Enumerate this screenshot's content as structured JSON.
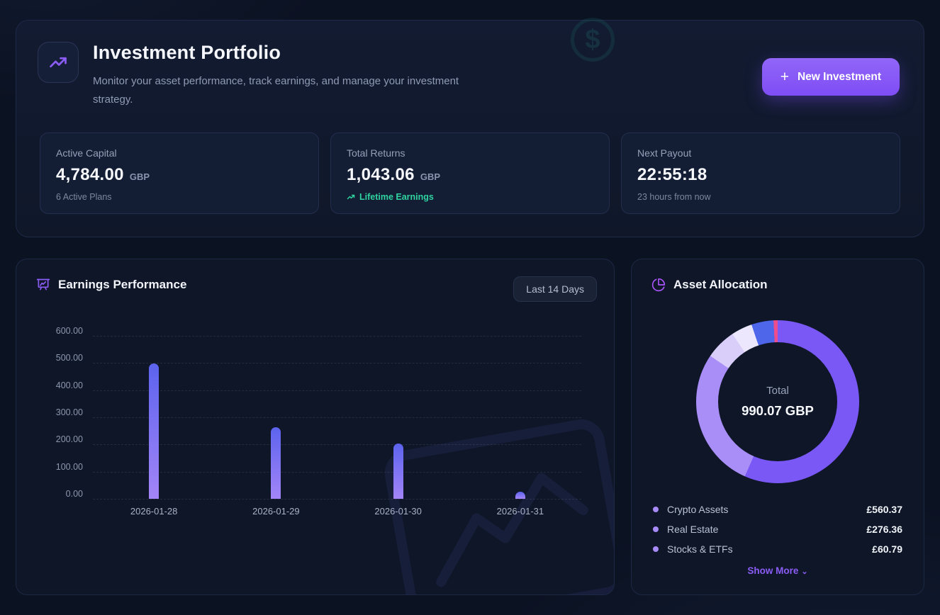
{
  "app": {
    "accent": "#8b5cf6",
    "positive": "#2fd3a0",
    "background": "#0b1222"
  },
  "hero": {
    "icon": "trending-up-icon",
    "title": "Investment Portfolio",
    "subtitle": "Monitor your asset performance, track earnings, and manage your investment strategy.",
    "button": {
      "icon": "+",
      "label": "New Investment"
    }
  },
  "stats": [
    {
      "label": "Active Capital",
      "value": "4,784.00",
      "currency": "GBP",
      "sub": "6 Active Plans"
    },
    {
      "label": "Total Returns",
      "value": "1,043.06",
      "currency": "GBP",
      "sub": "Lifetime Earnings",
      "watermark": "$"
    },
    {
      "label": "Next Payout",
      "value": "22:55:18",
      "currency": "",
      "sub": "23 hours from now"
    }
  ],
  "earnings": {
    "title": "Earnings Performance",
    "range": "Last 14 Days"
  },
  "allocation": {
    "title": "Asset Allocation",
    "center_label": "Total",
    "center_value": "990.07 GBP",
    "legend": [
      {
        "label": "Crypto Assets",
        "value": "£560.37"
      },
      {
        "label": "Real Estate",
        "value": "£276.36"
      },
      {
        "label": "Stocks & ETFs",
        "value": "£60.79"
      }
    ],
    "show_more": "Show More",
    "show_more_chevron": "⌄"
  },
  "chart_data": [
    {
      "type": "bar",
      "title": "Earnings Performance",
      "range_label": "Last 14 Days",
      "categories": [
        "2026-01-28",
        "2026-01-29",
        "2026-01-30",
        "2026-01-31"
      ],
      "values": [
        497,
        264,
        203,
        12
      ],
      "ylim": [
        0,
        600
      ],
      "yticks": [
        "600.00",
        "500.00",
        "400.00",
        "300.00",
        "200.00",
        "100.00",
        "0.00"
      ],
      "grid": "horizontal-dashed",
      "bar_gradient": [
        "#5c63ee",
        "#a385f7"
      ]
    },
    {
      "type": "pie",
      "subtype": "donut",
      "title": "Asset Allocation",
      "center_label": "Total",
      "center_value": "990.07 GBP",
      "total": 990.07,
      "segments": [
        {
          "label": "Crypto Assets",
          "value": 560.37,
          "color": "#7a58f5"
        },
        {
          "label": "Real Estate",
          "value": 276.36,
          "color": "#a98ef8"
        },
        {
          "label": "Stocks & ETFs",
          "value": 60.79,
          "color": "#d9cdf9"
        },
        {
          "label": "hidden-segment-1",
          "value": 41.0,
          "estimated": true,
          "color": "#ece7fc"
        },
        {
          "label": "hidden-segment-2",
          "value": 43.5,
          "estimated": true,
          "color": "#4d66ea"
        },
        {
          "label": "hidden-segment-3",
          "value": 8.05,
          "estimated": true,
          "color": "#ee4d8b"
        }
      ],
      "legend_position": "bottom"
    }
  ]
}
